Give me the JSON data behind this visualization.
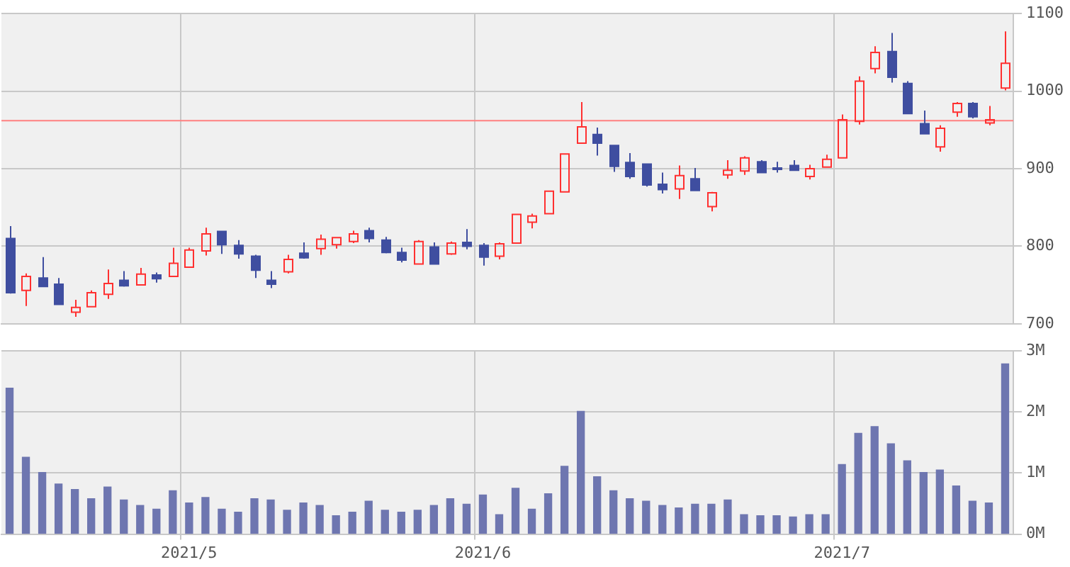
{
  "chart_data": [
    {
      "type": "candlestick",
      "categories": [
        null,
        null,
        null,
        null,
        null,
        null,
        null,
        null,
        null,
        null,
        null,
        "2021/5",
        null,
        null,
        null,
        null,
        null,
        null,
        null,
        null,
        null,
        null,
        null,
        null,
        null,
        null,
        null,
        null,
        null,
        "2021/6",
        null,
        null,
        null,
        null,
        null,
        null,
        null,
        null,
        null,
        null,
        null,
        null,
        null,
        null,
        null,
        null,
        null,
        null,
        null,
        null,
        null,
        "2021/7",
        null,
        null,
        null,
        null,
        null,
        null,
        null,
        null,
        null,
        null
      ],
      "ohlc": [
        [
          810,
          826,
          739,
          740
        ],
        [
          743,
          765,
          723,
          761
        ],
        [
          759,
          786,
          748,
          748
        ],
        [
          751,
          759,
          725,
          725
        ],
        [
          715,
          731,
          709,
          721
        ],
        [
          722,
          743,
          722,
          740
        ],
        [
          738,
          770,
          732,
          752
        ],
        [
          756,
          768,
          748,
          749
        ],
        [
          750,
          772,
          750,
          764
        ],
        [
          763,
          766,
          753,
          758
        ],
        [
          761,
          798,
          761,
          778
        ],
        [
          773,
          798,
          772,
          795
        ],
        [
          794,
          824,
          788,
          816
        ],
        [
          819,
          819,
          790,
          802
        ],
        [
          801,
          808,
          784,
          790
        ],
        [
          787,
          789,
          759,
          769
        ],
        [
          756,
          768,
          746,
          751
        ],
        [
          767,
          789,
          765,
          783
        ],
        [
          791,
          805,
          784,
          785
        ],
        [
          797,
          815,
          789,
          809
        ],
        [
          802,
          811,
          797,
          811
        ],
        [
          806,
          820,
          804,
          816
        ],
        [
          820,
          824,
          805,
          810
        ],
        [
          808,
          812,
          791,
          792
        ],
        [
          792,
          798,
          779,
          782
        ],
        [
          777,
          808,
          777,
          806
        ],
        [
          799,
          805,
          777,
          777
        ],
        [
          790,
          806,
          789,
          804
        ],
        [
          805,
          822,
          796,
          800
        ],
        [
          801,
          804,
          775,
          786
        ],
        [
          787,
          805,
          783,
          803
        ],
        [
          804,
          841,
          804,
          841
        ],
        [
          831,
          842,
          823,
          839
        ],
        [
          842,
          871,
          842,
          871
        ],
        [
          870,
          919,
          870,
          919
        ],
        [
          933,
          986,
          933,
          954
        ],
        [
          944,
          953,
          917,
          933
        ],
        [
          930,
          930,
          896,
          903
        ],
        [
          908,
          920,
          887,
          890
        ],
        [
          906,
          906,
          877,
          879
        ],
        [
          880,
          895,
          868,
          873
        ],
        [
          874,
          904,
          861,
          891
        ],
        [
          887,
          901,
          872,
          872
        ],
        [
          851,
          870,
          845,
          869
        ],
        [
          892,
          911,
          887,
          898
        ],
        [
          897,
          916,
          892,
          914
        ],
        [
          909,
          911,
          895,
          895
        ],
        [
          901,
          909,
          895,
          899
        ],
        [
          904,
          911,
          898,
          898
        ],
        [
          890,
          905,
          886,
          900
        ],
        [
          902,
          918,
          902,
          912
        ],
        [
          914,
          970,
          914,
          963
        ],
        [
          961,
          1019,
          957,
          1013
        ],
        [
          1029,
          1058,
          1023,
          1050
        ],
        [
          1051,
          1075,
          1011,
          1018
        ],
        [
          1010,
          1013,
          971,
          971
        ],
        [
          958,
          975,
          945,
          945
        ],
        [
          928,
          956,
          922,
          952
        ],
        [
          973,
          986,
          967,
          984
        ],
        [
          984,
          986,
          965,
          967
        ],
        [
          959,
          981,
          956,
          963
        ],
        [
          1004,
          1077,
          1001,
          1036
        ]
      ],
      "colors": [
        "#3f4ea0",
        "#ff3030",
        "#3f4ea0",
        "#3f4ea0",
        "#ff3030",
        "#ff3030",
        "#ff3030",
        "#3f4ea0",
        "#ff3030",
        "#3f4ea0",
        "#ff3030",
        "#ff3030",
        "#ff3030",
        "#3f4ea0",
        "#3f4ea0",
        "#3f4ea0",
        "#3f4ea0",
        "#ff3030",
        "#3f4ea0",
        "#ff3030",
        "#ff3030",
        "#ff3030",
        "#3f4ea0",
        "#3f4ea0",
        "#3f4ea0",
        "#ff3030",
        "#3f4ea0",
        "#ff3030",
        "#3f4ea0",
        "#3f4ea0",
        "#ff3030",
        "#ff3030",
        "#ff3030",
        "#ff3030",
        "#ff3030",
        "#ff3030",
        "#3f4ea0",
        "#3f4ea0",
        "#3f4ea0",
        "#3f4ea0",
        "#3f4ea0",
        "#ff3030",
        "#3f4ea0",
        "#ff3030",
        "#ff3030",
        "#ff3030",
        "#3f4ea0",
        "#3f4ea0",
        "#3f4ea0",
        "#ff3030",
        "#ff3030",
        "#ff3030",
        "#ff3030",
        "#ff3030",
        "#3f4ea0",
        "#3f4ea0",
        "#3f4ea0",
        "#ff3030",
        "#ff3030",
        "#3f4ea0",
        "#ff3030",
        "#ff3030"
      ],
      "ylim": [
        700,
        1100
      ],
      "yticks": [
        700,
        800,
        900,
        1000,
        1100
      ],
      "grid": true,
      "tick_labels": "y",
      "ref_lines": [
        {
          "axis": "y",
          "value": 962,
          "color": "#ff8080"
        }
      ]
    },
    {
      "type": "bar",
      "categories": [
        null,
        null,
        null,
        null,
        null,
        null,
        null,
        null,
        null,
        null,
        null,
        "2021/5",
        null,
        null,
        null,
        null,
        null,
        null,
        null,
        null,
        null,
        null,
        null,
        null,
        null,
        null,
        null,
        null,
        null,
        "2021/6",
        null,
        null,
        null,
        null,
        null,
        null,
        null,
        null,
        null,
        null,
        null,
        null,
        null,
        null,
        null,
        null,
        null,
        null,
        null,
        null,
        null,
        "2021/7",
        null,
        null,
        null,
        null,
        null,
        null,
        null,
        null,
        null,
        null
      ],
      "values": [
        2390000,
        1260000,
        1010000,
        820000,
        730000,
        580000,
        770000,
        560000,
        470000,
        410000,
        710000,
        510000,
        600000,
        410000,
        360000,
        580000,
        560000,
        390000,
        510000,
        470000,
        300000,
        360000,
        540000,
        390000,
        360000,
        390000,
        470000,
        580000,
        490000,
        640000,
        320000,
        750000,
        410000,
        660000,
        1110000,
        2010000,
        940000,
        710000,
        580000,
        540000,
        470000,
        430000,
        490000,
        490000,
        560000,
        320000,
        300000,
        300000,
        280000,
        320000,
        320000,
        1140000,
        1650000,
        1760000,
        1480000,
        1200000,
        1010000,
        1050000,
        790000,
        540000,
        510000,
        2790000
      ],
      "color": "#6e76b0",
      "ylim": [
        0,
        3000000
      ],
      "yticks": [
        {
          "value": 0,
          "label": "0M"
        },
        {
          "value": 1000000,
          "label": "1M"
        },
        {
          "value": 2000000,
          "label": "2M"
        },
        {
          "value": 3000000,
          "label": "3M"
        }
      ],
      "grid": true
    }
  ]
}
